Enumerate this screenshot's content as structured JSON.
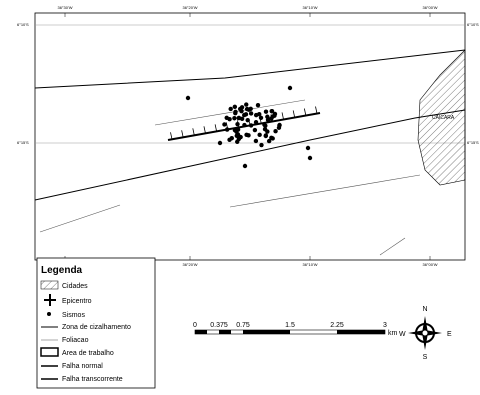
{
  "map": {
    "grid_labels": {
      "top": [
        "36°30'W",
        "36°20'W",
        "36°10'W",
        "36°00'W"
      ],
      "left": [
        "6°10'S",
        "6°15'S"
      ]
    },
    "city": "CAICARA",
    "legend": {
      "title": "Legenda",
      "items": [
        "Cidades",
        "Epicentro",
        "Sismos",
        "Zona de cizalhamento",
        "Foliacao",
        "Area de trabalho",
        "Falha normal",
        "Falha transcorrente"
      ]
    },
    "scale": {
      "labels": [
        "0",
        "0.375",
        "0.75",
        "1.5",
        "2.25",
        "3"
      ],
      "unit": "km"
    },
    "north_arrow": {
      "n": "N",
      "s": "S",
      "e": "E",
      "w": "W"
    }
  }
}
